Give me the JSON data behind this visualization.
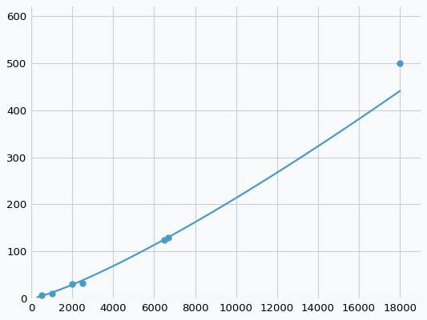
{
  "x": [
    500,
    1000,
    2000,
    2500,
    6500,
    6700,
    18000
  ],
  "y": [
    7,
    10,
    30,
    32,
    125,
    130,
    500
  ],
  "line_color": "#4a9cc4",
  "marker_color": "#4a9cc4",
  "marker_size": 5,
  "line_width": 1.6,
  "xlim": [
    0,
    19000
  ],
  "ylim": [
    0,
    620
  ],
  "xticks": [
    0,
    2000,
    4000,
    6000,
    8000,
    10000,
    12000,
    14000,
    16000,
    18000
  ],
  "yticks": [
    0,
    100,
    200,
    300,
    400,
    500,
    600
  ],
  "grid_color": "#c8d0d8",
  "background_color": "#f8f9fa",
  "tick_fontsize": 9.5
}
